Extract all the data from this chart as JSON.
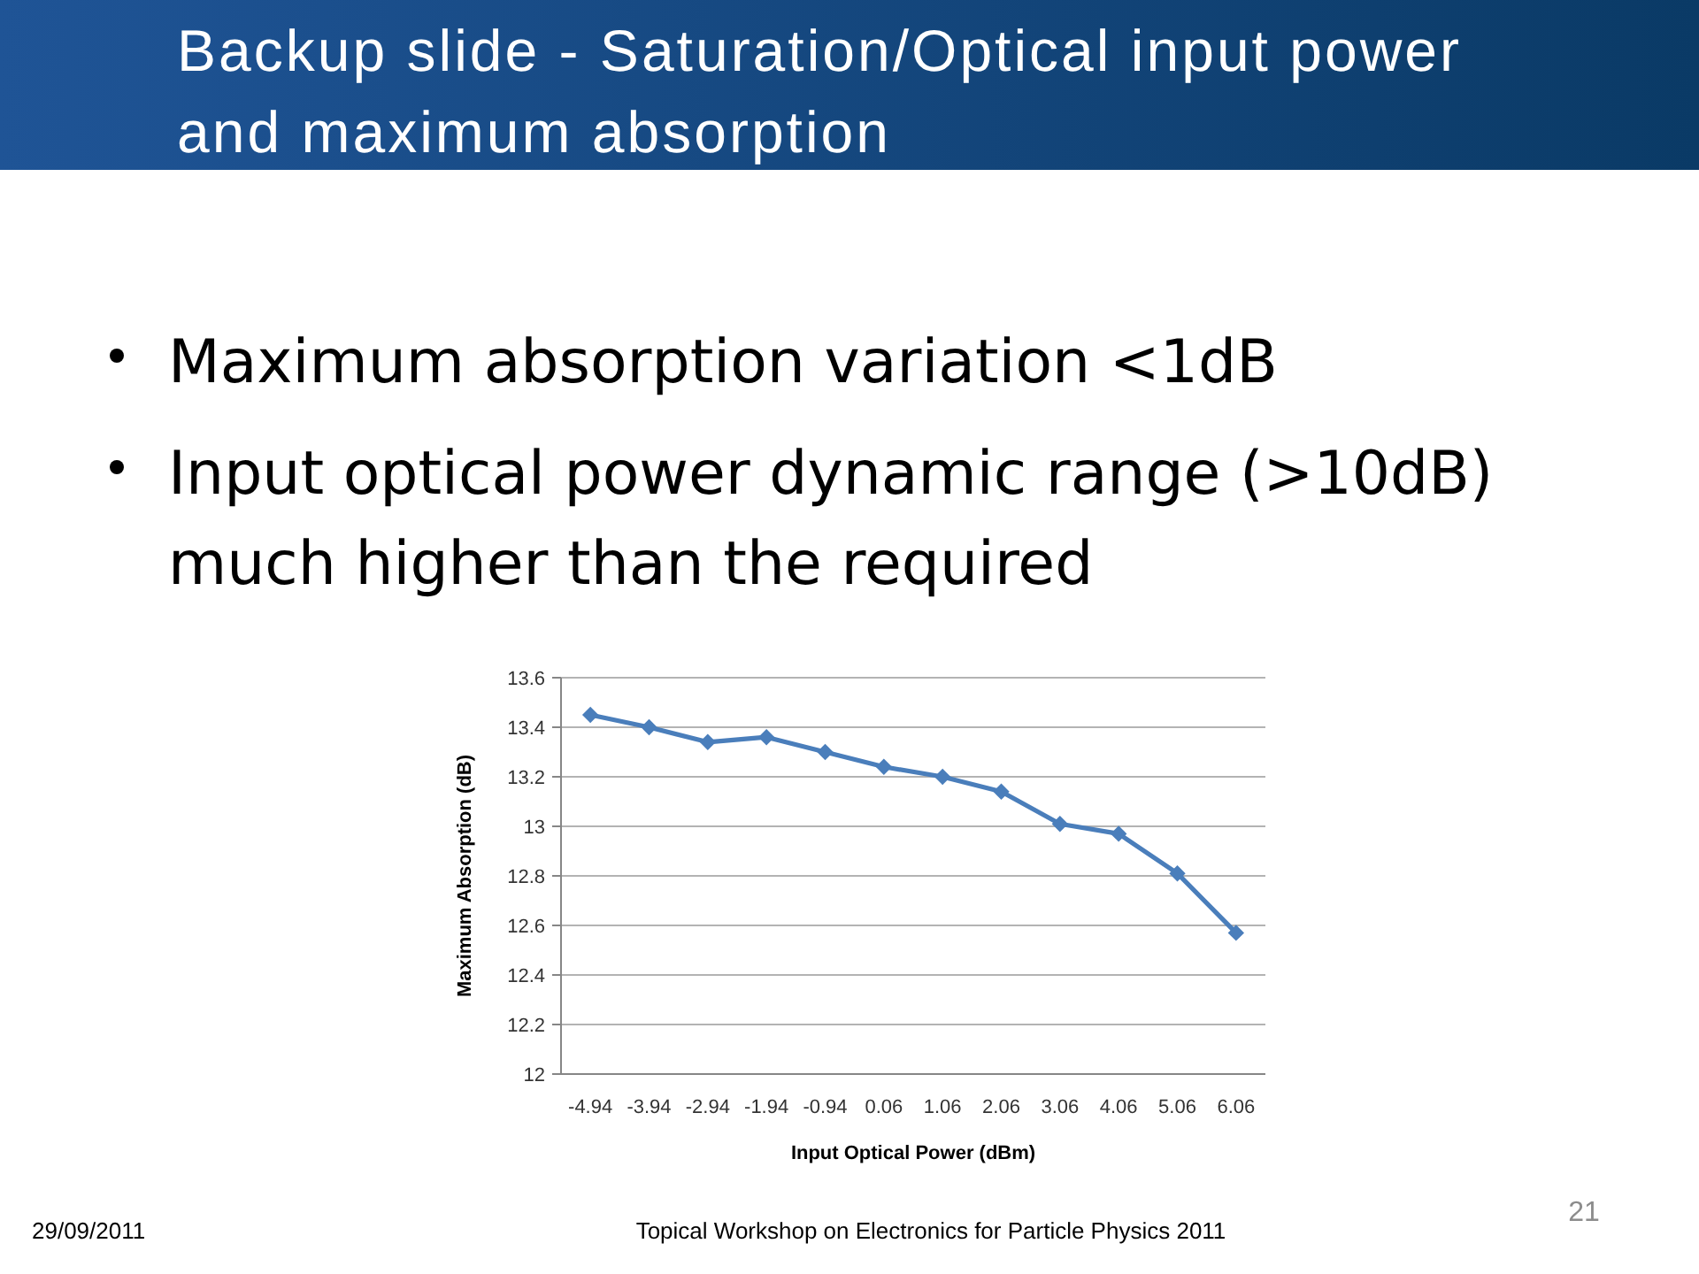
{
  "chart_data": {
    "type": "line",
    "title": "Backup slide - Saturation/Optical input power and maximum absorption",
    "annotations": [
      "Maximum absorption variation <1dB",
      "Input optical power dynamic range (>10dB) much higher than the required",
      "29/09/2011",
      "Topical Workshop on Electronics for Particle Physics 2011",
      "21"
    ],
    "xlabel": "Input Optical Power (dBm)",
    "ylabel": "Maximum Absorption (dB)",
    "categories": [
      "-4.94",
      "-3.94",
      "-2.94",
      "-1.94",
      "-0.94",
      "0.06",
      "1.06",
      "2.06",
      "3.06",
      "4.06",
      "5.06",
      "6.06"
    ],
    "series": [
      {
        "color": "#4a7ebb",
        "values": [
          13.45,
          13.4,
          13.34,
          13.36,
          13.3,
          13.24,
          13.2,
          13.14,
          13.01,
          12.97,
          12.81,
          12.57
        ]
      }
    ],
    "ylim": [
      12,
      13.6
    ],
    "yticks": [
      12,
      12.2,
      12.4,
      12.6,
      12.8,
      13,
      13.2,
      13.4,
      13.6
    ],
    "grid": "y",
    "marker": "diamond",
    "line_style": "solid"
  }
}
